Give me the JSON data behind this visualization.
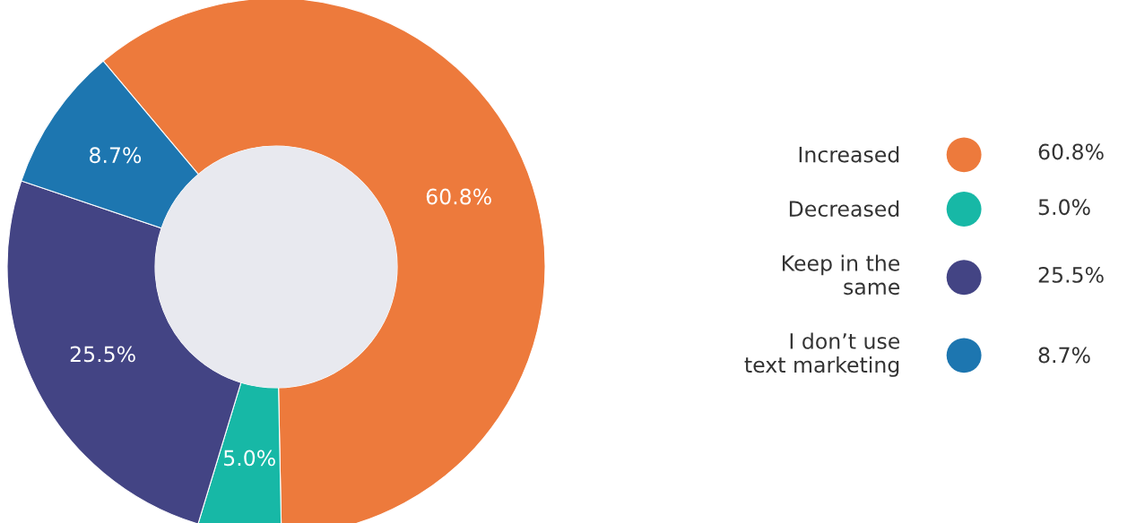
{
  "chart_data": {
    "type": "donut",
    "categories": [
      "Increased",
      "Decreased",
      "Keep in the\nsame",
      "I don’t use\ntext marketing"
    ],
    "values": [
      60.8,
      5.0,
      25.5,
      8.7
    ],
    "value_labels": [
      "60.8%",
      "5.0%",
      "25.5%",
      "8.7%"
    ],
    "colors": [
      "#ed7a3c",
      "#17b8a6",
      "#434484",
      "#1d76b0"
    ],
    "legend": "right"
  }
}
